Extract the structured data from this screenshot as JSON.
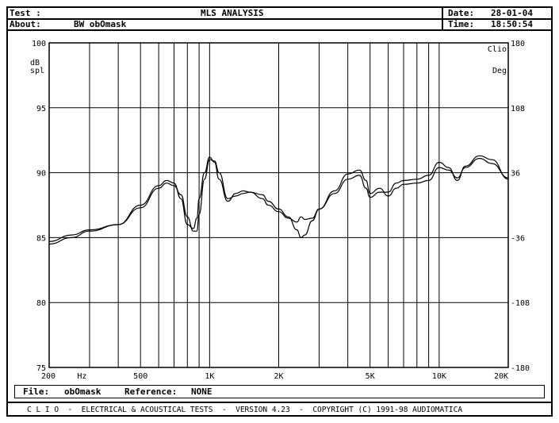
{
  "header": {
    "test_label": "Test :",
    "title": "MLS ANALYSIS",
    "date_label": "Date:",
    "date_value": "28-01-04",
    "about_label": "About:",
    "about_value": "BW obOmask",
    "time_label": "Time:",
    "time_value": "18:50:54"
  },
  "file_bar": {
    "file_label": "File:",
    "file_value": "obOmask",
    "reference_label": "Reference:",
    "reference_value": "NONE"
  },
  "footer": {
    "text": "C L I O  -  ELECTRICAL & ACOUSTICAL TESTS  -  VERSION 4.23  -  COPYRIGHT (C) 1991-98 AUDIOMATICA"
  },
  "chart_data": {
    "type": "line",
    "title": "",
    "brand_label": "Clio",
    "xlabel": "",
    "x_scale": "log",
    "xlim": [
      200,
      20000
    ],
    "x_ticks": [
      {
        "value": 200,
        "label": "200"
      },
      {
        "value": 500,
        "label": "500"
      },
      {
        "value": 1000,
        "label": "1K"
      },
      {
        "value": 2000,
        "label": "2K"
      },
      {
        "value": 5000,
        "label": "5K"
      },
      {
        "value": 10000,
        "label": "10K"
      },
      {
        "value": 20000,
        "label": "20K"
      }
    ],
    "x_unit_label": "Hz",
    "ylabel_left": [
      "dB",
      "spl"
    ],
    "ylim_left": [
      75,
      100
    ],
    "y_ticks_left": [
      75,
      80,
      85,
      90,
      95,
      100
    ],
    "ylabel_right": "Deg",
    "ylim_right": [
      -180,
      180
    ],
    "y_ticks_right": [
      -180,
      -108,
      -36,
      36,
      108,
      180
    ],
    "grid": true,
    "series": [
      {
        "x": [
          200,
          250,
          300,
          400,
          500,
          600,
          650,
          700,
          750,
          800,
          850,
          880,
          900,
          950,
          1000,
          1050,
          1100,
          1200,
          1300,
          1400,
          1500,
          1700,
          1800,
          2000,
          2200,
          2400,
          2500,
          2600,
          2800,
          3000,
          3500,
          4000,
          4500,
          4800,
          5000,
          5500,
          6000,
          6500,
          7000,
          8000,
          9000,
          10000,
          11000,
          12000,
          13000,
          15000,
          17000,
          20000
        ],
        "values": [
          84.7,
          85.2,
          85.6,
          86.0,
          87.5,
          89.0,
          89.4,
          89.2,
          88.0,
          86.0,
          85.7,
          86.5,
          88.0,
          90.0,
          91.2,
          90.8,
          89.5,
          87.8,
          88.4,
          88.6,
          88.5,
          88.0,
          87.5,
          87.0,
          86.5,
          86.2,
          86.6,
          86.4,
          86.5,
          87.2,
          88.6,
          89.9,
          90.2,
          89.4,
          88.4,
          88.8,
          88.2,
          88.8,
          89.1,
          89.2,
          89.4,
          90.4,
          90.2,
          89.6,
          90.4,
          91.1,
          90.7,
          89.6
        ]
      },
      {
        "x": [
          200,
          250,
          300,
          400,
          500,
          600,
          650,
          700,
          750,
          800,
          850,
          880,
          900,
          950,
          1000,
          1050,
          1100,
          1200,
          1300,
          1400,
          1500,
          1700,
          1800,
          2000,
          2200,
          2400,
          2500,
          2600,
          2800,
          3000,
          3500,
          4000,
          4500,
          4800,
          5000,
          5500,
          6000,
          6500,
          7000,
          8000,
          9000,
          10000,
          11000,
          12000,
          13000,
          15000,
          17000,
          20000
        ],
        "values": [
          84.5,
          85.0,
          85.5,
          86.0,
          87.3,
          88.8,
          89.2,
          89.0,
          88.3,
          86.6,
          85.5,
          85.5,
          86.8,
          89.5,
          91.0,
          90.9,
          90.0,
          88.0,
          88.2,
          88.4,
          88.5,
          88.3,
          87.8,
          87.2,
          86.6,
          85.6,
          85.0,
          85.2,
          86.3,
          87.2,
          88.4,
          89.5,
          89.8,
          88.8,
          88.1,
          88.5,
          88.5,
          89.2,
          89.4,
          89.5,
          89.8,
          90.8,
          90.4,
          89.4,
          90.5,
          91.3,
          91.0,
          89.5
        ]
      }
    ]
  }
}
